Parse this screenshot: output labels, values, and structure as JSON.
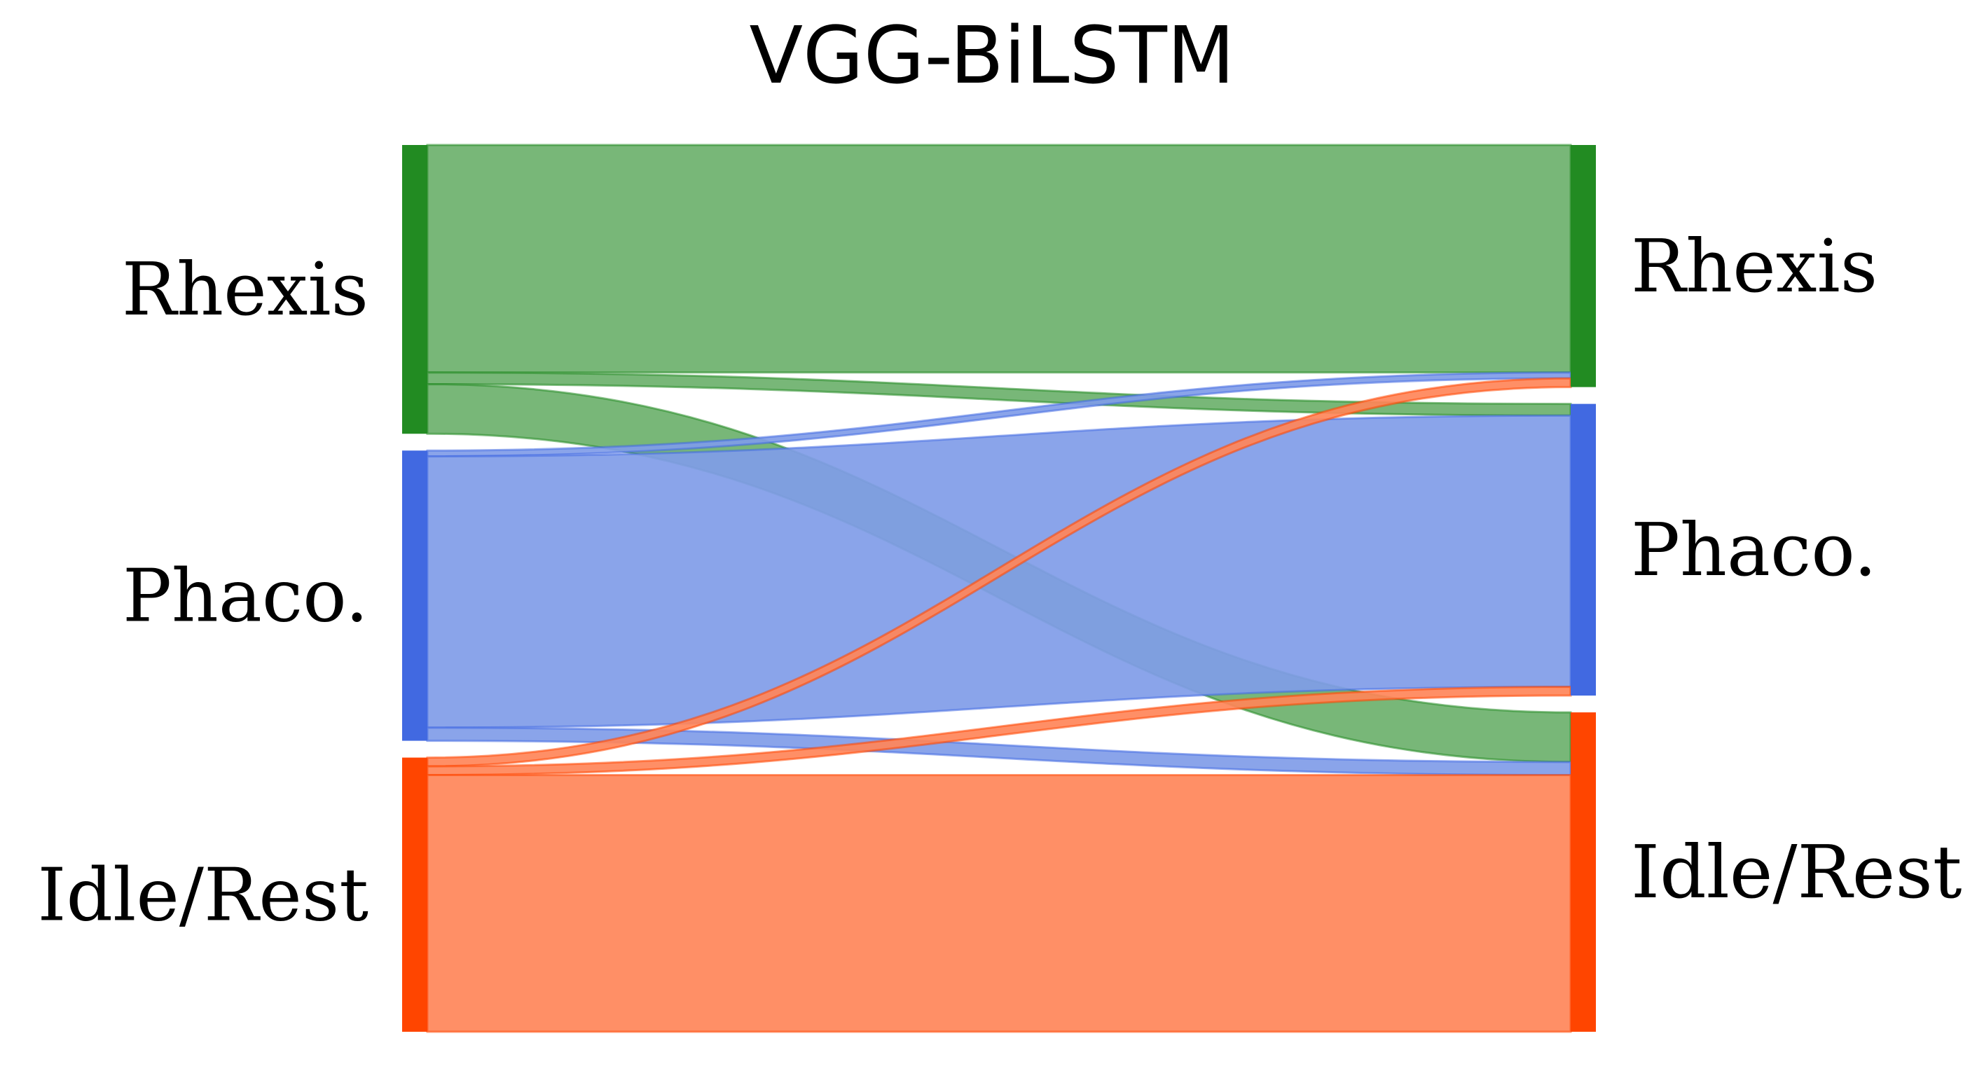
{
  "title": "VGG-BiLSTM",
  "colors": {
    "Rhexis": "#228B22",
    "Phaco.": "#4169E1",
    "Idle/Rest": "#FF4500"
  },
  "flow_colors": {
    "Rhexis": "#6DB16D",
    "Phaco.": "#809CE8",
    "Idle/Rest": "#FF8659"
  },
  "nodes_left": [
    "Rhexis",
    "Phaco.",
    "Idle/Rest"
  ],
  "nodes_right": [
    "Rhexis",
    "Phaco.",
    "Idle/Rest"
  ],
  "flows": [
    {
      "from": "Rhexis",
      "to": "Rhexis",
      "value": 0.78
    },
    {
      "from": "Rhexis",
      "to": "Phaco.",
      "value": 0.04
    },
    {
      "from": "Rhexis",
      "to": "Idle/Rest",
      "value": 0.17
    },
    {
      "from": "Phaco.",
      "to": "Rhexis",
      "value": 0.02
    },
    {
      "from": "Phaco.",
      "to": "Phaco.",
      "value": 0.93
    },
    {
      "from": "Phaco.",
      "to": "Idle/Rest",
      "value": 0.045
    },
    {
      "from": "Idle/Rest",
      "to": "Rhexis",
      "value": 0.03
    },
    {
      "from": "Idle/Rest",
      "to": "Phaco.",
      "value": 0.03
    },
    {
      "from": "Idle/Rest",
      "to": "Idle/Rest",
      "value": 0.88
    }
  ]
}
